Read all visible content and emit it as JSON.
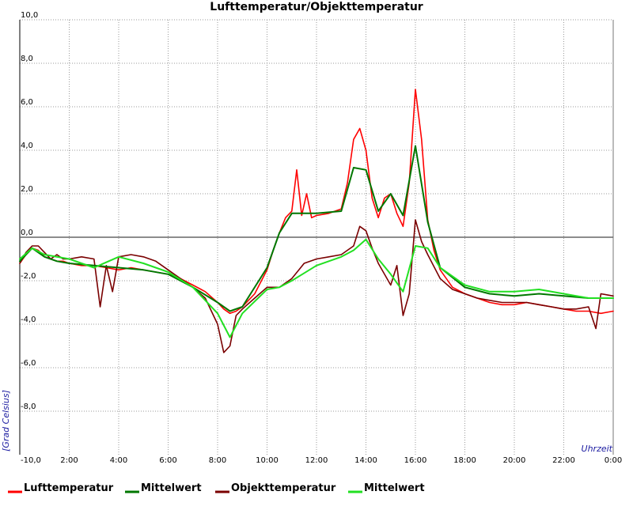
{
  "chart_data": {
    "type": "line",
    "title": "Lufttemperatur/Objekttemperatur",
    "xlabel": "Uhrzeit",
    "ylabel": "[Grad Celsius]",
    "xlim": [
      0,
      24
    ],
    "ylim": [
      -10,
      10
    ],
    "grid": true,
    "legend_position": "bottom",
    "zero_line": true,
    "x_ticks": [
      {
        "value": 2,
        "label": "2:00"
      },
      {
        "value": 4,
        "label": "4:00"
      },
      {
        "value": 6,
        "label": "6:00"
      },
      {
        "value": 8,
        "label": "8:00"
      },
      {
        "value": 10,
        "label": "10:00"
      },
      {
        "value": 12,
        "label": "12:00"
      },
      {
        "value": 14,
        "label": "14:00"
      },
      {
        "value": 16,
        "label": "16:00"
      },
      {
        "value": 18,
        "label": "18:00"
      },
      {
        "value": 20,
        "label": "20:00"
      },
      {
        "value": 22,
        "label": "22:00"
      },
      {
        "value": 24,
        "label": "0:00"
      }
    ],
    "y_ticks": [
      {
        "value": 10,
        "label": "10,0"
      },
      {
        "value": 8,
        "label": "8,0"
      },
      {
        "value": 6,
        "label": "6,0"
      },
      {
        "value": 4,
        "label": "4,0"
      },
      {
        "value": 2,
        "label": "2,0"
      },
      {
        "value": 0,
        "label": "0,0"
      },
      {
        "value": -2,
        "label": "-2,0"
      },
      {
        "value": -4,
        "label": "-4,0"
      },
      {
        "value": -6,
        "label": "-6,0"
      },
      {
        "value": -8,
        "label": "-8,0"
      },
      {
        "value": -10,
        "label": "-10,0"
      }
    ],
    "series": [
      {
        "name": "Lufttemperatur",
        "color": "#ff0000",
        "points": [
          [
            0,
            -1.2
          ],
          [
            0.25,
            -0.8
          ],
          [
            0.5,
            -0.5
          ],
          [
            0.75,
            -0.6
          ],
          [
            1,
            -0.9
          ],
          [
            1.25,
            -1.0
          ],
          [
            1.5,
            -1.1
          ],
          [
            1.75,
            -1.1
          ],
          [
            2,
            -1.2
          ],
          [
            2.5,
            -1.3
          ],
          [
            3,
            -1.3
          ],
          [
            3.5,
            -1.4
          ],
          [
            4,
            -1.5
          ],
          [
            4.5,
            -1.4
          ],
          [
            5,
            -1.5
          ],
          [
            5.5,
            -1.6
          ],
          [
            6,
            -1.7
          ],
          [
            6.5,
            -1.9
          ],
          [
            7,
            -2.2
          ],
          [
            7.5,
            -2.5
          ],
          [
            8,
            -3.0
          ],
          [
            8.25,
            -3.3
          ],
          [
            8.5,
            -3.5
          ],
          [
            8.75,
            -3.4
          ],
          [
            9,
            -3.2
          ],
          [
            9.5,
            -2.6
          ],
          [
            10,
            -1.5
          ],
          [
            10.25,
            -0.6
          ],
          [
            10.5,
            0.2
          ],
          [
            10.75,
            0.9
          ],
          [
            11,
            1.2
          ],
          [
            11.2,
            3.1
          ],
          [
            11.4,
            1.0
          ],
          [
            11.6,
            2.0
          ],
          [
            11.8,
            0.9
          ],
          [
            12,
            1.0
          ],
          [
            12.5,
            1.1
          ],
          [
            13,
            1.3
          ],
          [
            13.25,
            2.5
          ],
          [
            13.5,
            4.5
          ],
          [
            13.75,
            5.0
          ],
          [
            14,
            4.0
          ],
          [
            14.25,
            1.8
          ],
          [
            14.5,
            0.9
          ],
          [
            14.75,
            1.8
          ],
          [
            15,
            2.0
          ],
          [
            15.25,
            1.1
          ],
          [
            15.5,
            0.5
          ],
          [
            15.75,
            2.5
          ],
          [
            16,
            6.8
          ],
          [
            16.25,
            4.5
          ],
          [
            16.5,
            0.8
          ],
          [
            16.75,
            -0.6
          ],
          [
            17,
            -1.5
          ],
          [
            17.5,
            -2.3
          ],
          [
            18,
            -2.6
          ],
          [
            18.5,
            -2.8
          ],
          [
            19,
            -3.0
          ],
          [
            19.5,
            -3.1
          ],
          [
            20,
            -3.1
          ],
          [
            20.5,
            -3.0
          ],
          [
            21,
            -3.1
          ],
          [
            21.5,
            -3.2
          ],
          [
            22,
            -3.3
          ],
          [
            22.5,
            -3.4
          ],
          [
            23,
            -3.4
          ],
          [
            23.5,
            -3.5
          ],
          [
            24,
            -3.4
          ]
        ]
      },
      {
        "name": "Mittelwert",
        "color": "#007700",
        "points": [
          [
            0,
            -1.1
          ],
          [
            0.5,
            -0.5
          ],
          [
            1,
            -0.9
          ],
          [
            1.5,
            -1.1
          ],
          [
            2,
            -1.2
          ],
          [
            3,
            -1.3
          ],
          [
            4,
            -1.4
          ],
          [
            5,
            -1.5
          ],
          [
            6,
            -1.7
          ],
          [
            7,
            -2.3
          ],
          [
            8,
            -3.0
          ],
          [
            8.5,
            -3.4
          ],
          [
            9,
            -3.2
          ],
          [
            10,
            -1.4
          ],
          [
            10.5,
            0.2
          ],
          [
            11,
            1.1
          ],
          [
            12,
            1.1
          ],
          [
            13,
            1.2
          ],
          [
            13.5,
            3.2
          ],
          [
            14,
            3.1
          ],
          [
            14.5,
            1.2
          ],
          [
            15,
            2.0
          ],
          [
            15.5,
            1.0
          ],
          [
            16,
            4.2
          ],
          [
            16.5,
            0.7
          ],
          [
            17,
            -1.4
          ],
          [
            18,
            -2.3
          ],
          [
            19,
            -2.6
          ],
          [
            20,
            -2.7
          ],
          [
            21,
            -2.6
          ],
          [
            22,
            -2.7
          ],
          [
            23,
            -2.8
          ],
          [
            24,
            -2.8
          ]
        ]
      },
      {
        "name": "Objekttemperatur",
        "color": "#7a0000",
        "points": [
          [
            0,
            -1.2
          ],
          [
            0.25,
            -0.7
          ],
          [
            0.5,
            -0.4
          ],
          [
            0.75,
            -0.4
          ],
          [
            1,
            -0.7
          ],
          [
            1.25,
            -1.0
          ],
          [
            1.5,
            -0.8
          ],
          [
            1.75,
            -1.0
          ],
          [
            2,
            -1.0
          ],
          [
            2.5,
            -0.9
          ],
          [
            3,
            -1.0
          ],
          [
            3.25,
            -3.2
          ],
          [
            3.5,
            -1.3
          ],
          [
            3.75,
            -2.5
          ],
          [
            4,
            -0.9
          ],
          [
            4.5,
            -0.8
          ],
          [
            5,
            -0.9
          ],
          [
            5.5,
            -1.1
          ],
          [
            6,
            -1.5
          ],
          [
            6.5,
            -1.9
          ],
          [
            7,
            -2.3
          ],
          [
            7.5,
            -2.8
          ],
          [
            8,
            -4.0
          ],
          [
            8.25,
            -5.3
          ],
          [
            8.5,
            -5.0
          ],
          [
            8.75,
            -3.6
          ],
          [
            9,
            -3.3
          ],
          [
            9.5,
            -2.8
          ],
          [
            10,
            -2.3
          ],
          [
            10.5,
            -2.3
          ],
          [
            11,
            -1.9
          ],
          [
            11.5,
            -1.2
          ],
          [
            12,
            -1.0
          ],
          [
            12.5,
            -0.9
          ],
          [
            13,
            -0.8
          ],
          [
            13.5,
            -0.4
          ],
          [
            13.75,
            0.5
          ],
          [
            14,
            0.3
          ],
          [
            14.25,
            -0.5
          ],
          [
            14.5,
            -1.2
          ],
          [
            15,
            -2.2
          ],
          [
            15.25,
            -1.3
          ],
          [
            15.5,
            -3.6
          ],
          [
            15.75,
            -2.6
          ],
          [
            16,
            0.8
          ],
          [
            16.25,
            -0.2
          ],
          [
            16.5,
            -0.8
          ],
          [
            17,
            -1.9
          ],
          [
            17.5,
            -2.4
          ],
          [
            18,
            -2.6
          ],
          [
            18.5,
            -2.8
          ],
          [
            19,
            -2.9
          ],
          [
            19.5,
            -3.0
          ],
          [
            20,
            -3.0
          ],
          [
            20.5,
            -3.0
          ],
          [
            21,
            -3.1
          ],
          [
            21.5,
            -3.2
          ],
          [
            22,
            -3.3
          ],
          [
            22.5,
            -3.3
          ],
          [
            23,
            -3.2
          ],
          [
            23.3,
            -4.2
          ],
          [
            23.5,
            -2.6
          ],
          [
            24,
            -2.7
          ]
        ]
      },
      {
        "name": "Mittelwert",
        "color": "#22e022",
        "points": [
          [
            0,
            -1.0
          ],
          [
            0.5,
            -0.5
          ],
          [
            1,
            -0.8
          ],
          [
            2,
            -1.0
          ],
          [
            3,
            -1.4
          ],
          [
            4,
            -0.9
          ],
          [
            5,
            -1.2
          ],
          [
            6,
            -1.6
          ],
          [
            7,
            -2.3
          ],
          [
            8,
            -3.5
          ],
          [
            8.5,
            -4.6
          ],
          [
            9,
            -3.5
          ],
          [
            10,
            -2.4
          ],
          [
            10.5,
            -2.3
          ],
          [
            11,
            -2.0
          ],
          [
            12,
            -1.3
          ],
          [
            13,
            -0.9
          ],
          [
            13.5,
            -0.6
          ],
          [
            14,
            -0.1
          ],
          [
            14.5,
            -1.0
          ],
          [
            15,
            -1.7
          ],
          [
            15.5,
            -2.5
          ],
          [
            16,
            -0.4
          ],
          [
            16.5,
            -0.5
          ],
          [
            17,
            -1.4
          ],
          [
            18,
            -2.2
          ],
          [
            19,
            -2.5
          ],
          [
            20,
            -2.5
          ],
          [
            21,
            -2.4
          ],
          [
            22,
            -2.6
          ],
          [
            23,
            -2.8
          ],
          [
            24,
            -2.8
          ]
        ]
      }
    ]
  }
}
